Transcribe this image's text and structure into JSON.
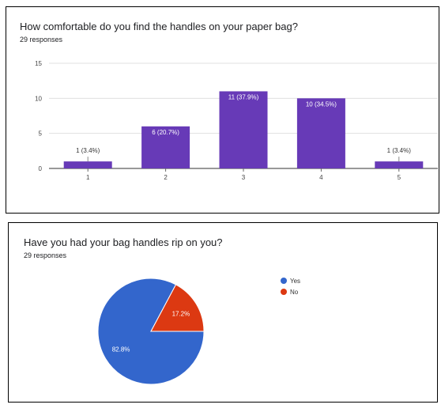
{
  "charts": [
    {
      "title": "How comfortable do you find the handles on your paper bag?",
      "responses": "29 responses"
    },
    {
      "title": "Have you had your bag handles rip on you?",
      "responses": "29 responses"
    }
  ],
  "colors": {
    "bar": "#673ab7",
    "yes": "#3366cc",
    "no": "#dc3912"
  },
  "chart_data": [
    {
      "type": "bar",
      "categories": [
        "1",
        "2",
        "3",
        "4",
        "5"
      ],
      "values": [
        1,
        6,
        11,
        10,
        1
      ],
      "data_labels": [
        "1 (3.4%)",
        "6 (20.7%)",
        "11 (37.9%)",
        "10 (34.5%)",
        "1 (3.4%)"
      ],
      "yticks": [
        "0",
        "5",
        "10",
        "15"
      ],
      "ylim": [
        0,
        15
      ],
      "grid": true
    },
    {
      "type": "pie",
      "labels": [
        "Yes",
        "No"
      ],
      "values": [
        82.8,
        17.2
      ],
      "slice_labels": [
        "82.8%",
        "17.2%"
      ],
      "legend": "right"
    }
  ]
}
